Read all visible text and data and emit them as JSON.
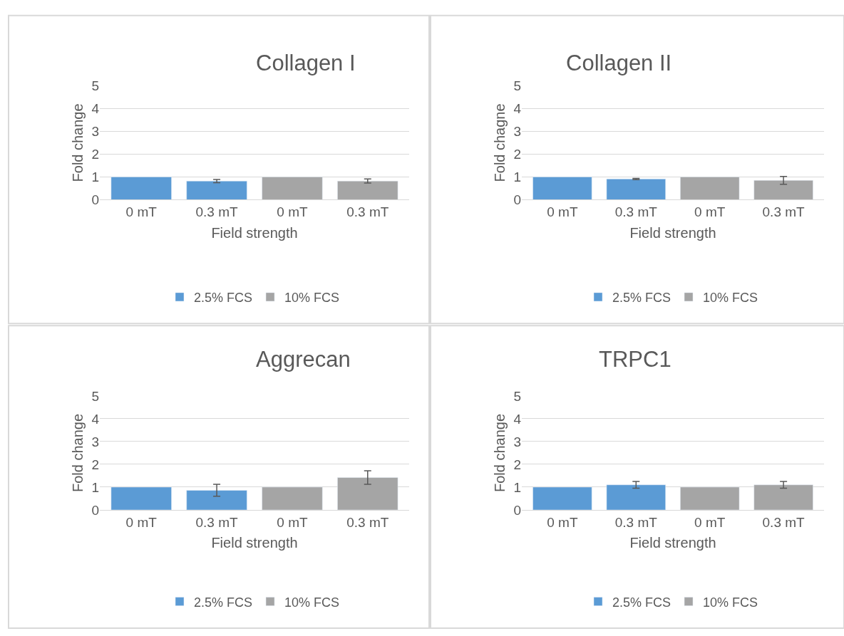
{
  "chart_data": [
    {
      "type": "bar",
      "title": "Collagen I",
      "xlabel": "Field strength",
      "ylabel": "Fold change",
      "categories": [
        "0 mT",
        "0.3 mT",
        "0 mT",
        "0.3 mT"
      ],
      "ylim": [
        0,
        5
      ],
      "yticks": [
        0,
        1,
        2,
        3,
        4,
        5
      ],
      "grid": "y",
      "legend": "bottom",
      "series": [
        {
          "name": "2.5% FCS",
          "color": "#5b9bd5",
          "values": [
            1,
            0.82,
            null,
            null
          ],
          "errors": [
            null,
            0.07,
            null,
            null
          ]
        },
        {
          "name": "10% FCS",
          "color": "#a5a5a5",
          "values": [
            null,
            null,
            1,
            0.82
          ],
          "errors": [
            null,
            null,
            null,
            0.09
          ]
        }
      ]
    },
    {
      "type": "bar",
      "title": "Collagen II",
      "xlabel": "Field strength",
      "ylabel": "Fold chagne",
      "categories": [
        "0 mT",
        "0.3 mT",
        "0 mT",
        "0.3 mT"
      ],
      "ylim": [
        0,
        5
      ],
      "yticks": [
        0,
        1,
        2,
        3,
        4,
        5
      ],
      "grid": "y",
      "legend": "bottom",
      "series": [
        {
          "name": "2.5% FCS",
          "color": "#5b9bd5",
          "values": [
            1,
            0.91,
            null,
            null
          ],
          "errors": [
            null,
            0.03,
            null,
            null
          ]
        },
        {
          "name": "10% FCS",
          "color": "#a5a5a5",
          "values": [
            null,
            null,
            1,
            0.85
          ],
          "errors": [
            null,
            null,
            null,
            0.17
          ]
        }
      ]
    },
    {
      "type": "bar",
      "title": "Aggrecan",
      "xlabel": "Field strength",
      "ylabel": "Fold change",
      "categories": [
        "0 mT",
        "0.3 mT",
        "0 mT",
        "0.3 mT"
      ],
      "ylim": [
        0,
        5
      ],
      "yticks": [
        0,
        1,
        2,
        3,
        4,
        5
      ],
      "grid": "y",
      "legend": "bottom",
      "series": [
        {
          "name": "2.5% FCS",
          "color": "#5b9bd5",
          "values": [
            1,
            0.86,
            null,
            null
          ],
          "errors": [
            null,
            0.26,
            null,
            null
          ]
        },
        {
          "name": "10% FCS",
          "color": "#a5a5a5",
          "values": [
            null,
            null,
            1,
            1.42
          ],
          "errors": [
            null,
            null,
            null,
            0.3
          ]
        }
      ]
    },
    {
      "type": "bar",
      "title": "TRPC1",
      "xlabel": "Field strength",
      "ylabel": "Fold change",
      "categories": [
        "0 mT",
        "0.3 mT",
        "0 mT",
        "0.3 mT"
      ],
      "ylim": [
        0,
        5
      ],
      "yticks": [
        0,
        1,
        2,
        3,
        4,
        5
      ],
      "grid": "y",
      "legend": "bottom",
      "series": [
        {
          "name": "2.5% FCS",
          "color": "#5b9bd5",
          "values": [
            1,
            1.1,
            null,
            null
          ],
          "errors": [
            null,
            0.15,
            null,
            null
          ]
        },
        {
          "name": "10% FCS",
          "color": "#a5a5a5",
          "values": [
            null,
            null,
            1,
            1.1
          ],
          "errors": [
            null,
            null,
            null,
            0.15
          ]
        }
      ]
    }
  ]
}
